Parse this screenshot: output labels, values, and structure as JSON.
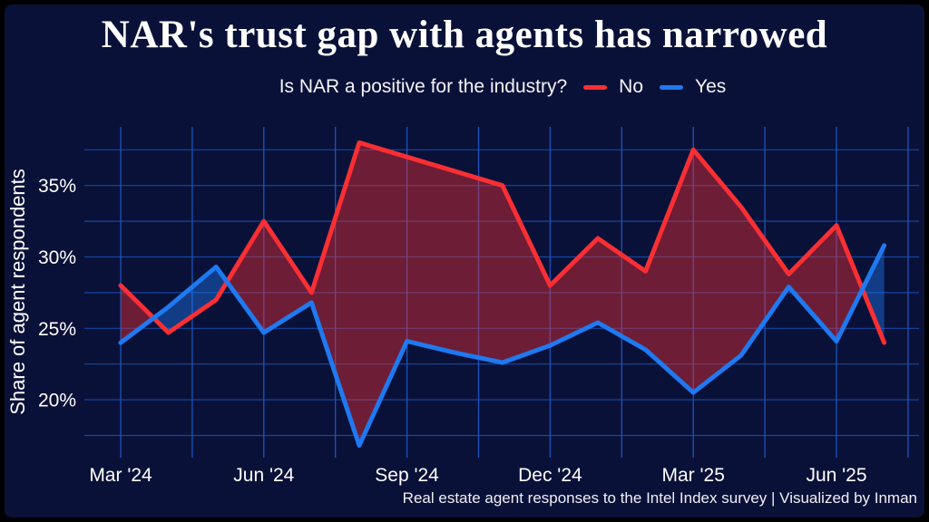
{
  "frame": {
    "background": "#0A1138",
    "border_color": "#000000"
  },
  "header": {
    "title": "NAR's trust gap with agents has narrowed",
    "subtitle": "Is NAR a positive for the industry?"
  },
  "legend": {
    "items": [
      {
        "label": "No",
        "color": "#F92F33"
      },
      {
        "label": "Yes",
        "color": "#1F79F0"
      }
    ]
  },
  "axes": {
    "y_label": "Share of agent respondents",
    "y_ticks": [
      "20%",
      "25%",
      "30%",
      "35%"
    ],
    "y_tick_values": [
      20,
      25,
      30,
      35
    ],
    "x_ticks": [
      "Mar '24",
      "Jun '24",
      "Sep '24",
      "Dec '24",
      "Mar '25",
      "Jun '25"
    ]
  },
  "caption": "Real estate agent responses to the Intel Index survey | Visualized by Inman",
  "chart_data": {
    "type": "line",
    "title": "NAR's trust gap with agents has narrowed",
    "subtitle": "Is NAR a positive for the industry?",
    "categories": [
      "Mar '24",
      "Apr '24",
      "May '24",
      "Jun '24",
      "Jul '24",
      "Aug '24",
      "Sep '24",
      "Oct '24",
      "Nov '24",
      "Dec '24",
      "Jan '25",
      "Feb '25",
      "Mar '25",
      "Apr '25",
      "May '25",
      "Jun '25",
      "Jul '25"
    ],
    "series": [
      {
        "name": "No",
        "color": "#F92F33",
        "values": [
          28,
          24.7,
          27,
          32.5,
          27.5,
          38,
          37,
          36,
          35,
          28,
          31.3,
          29,
          37.5,
          33.5,
          28.8,
          32.2,
          24
        ]
      },
      {
        "name": "Yes",
        "color": "#1F79F0",
        "values": [
          24,
          26.5,
          29.3,
          24.7,
          26.8,
          16.8,
          24.1,
          23.3,
          22.6,
          23.8,
          25.4,
          23.5,
          20.5,
          23.1,
          27.9,
          24.1,
          30.8
        ]
      }
    ],
    "ylabel": "Share of agent respondents",
    "ylim": [
      15.9,
      39.1
    ],
    "grid": true,
    "gridline_interval_pct": 2.5,
    "gridline_color_h": "#1550B2",
    "gridline_color_v": "#1A55BE",
    "legend_position": "top",
    "fill_between": true,
    "fill_colors": {
      "no_above": "rgba(249,47,51,0.42)",
      "yes_above": "rgba(31,121,240,0.42)"
    },
    "x_major_tick_every": 3
  }
}
